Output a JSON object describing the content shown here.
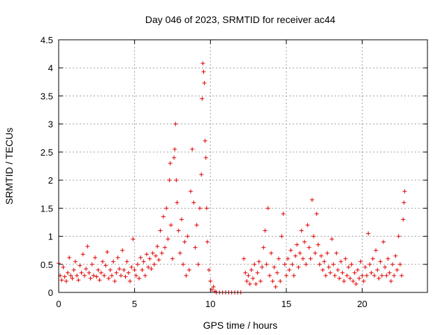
{
  "chart_data": {
    "type": "scatter",
    "title": "Day 046 of 2023, SRMTID for receiver ac44",
    "xlabel": "GPS time / hours",
    "ylabel": "SRMTID / TECUs",
    "xlim": [
      0,
      24.3
    ],
    "ylim": [
      0,
      4.5
    ],
    "xticks": [
      0,
      5,
      10,
      15,
      20
    ],
    "xtick_labels": [
      "0",
      "5",
      "10",
      "15",
      "20"
    ],
    "yticks": [
      0,
      0.5,
      1,
      1.5,
      2,
      2.5,
      3,
      3.5,
      4,
      4.5
    ],
    "ytick_labels": [
      "0",
      "0.5",
      "1",
      "1.5",
      "2",
      "2.5",
      "3",
      "3.5",
      "4",
      "4.5"
    ],
    "grid": true,
    "marker": "plus",
    "series": [
      {
        "name": "SRMTID",
        "color": "#e00000",
        "points": [
          [
            0.0,
            0.52
          ],
          [
            0.1,
            0.3
          ],
          [
            0.2,
            0.22
          ],
          [
            0.3,
            0.45
          ],
          [
            0.4,
            0.28
          ],
          [
            0.5,
            0.2
          ],
          [
            0.6,
            0.35
          ],
          [
            0.7,
            0.62
          ],
          [
            0.8,
            0.3
          ],
          [
            0.9,
            0.25
          ],
          [
            1.0,
            0.4
          ],
          [
            1.1,
            0.55
          ],
          [
            1.2,
            0.3
          ],
          [
            1.3,
            0.22
          ],
          [
            1.4,
            0.48
          ],
          [
            1.5,
            0.35
          ],
          [
            1.6,
            0.68
          ],
          [
            1.7,
            0.3
          ],
          [
            1.8,
            0.42
          ],
          [
            1.9,
            0.82
          ],
          [
            2.0,
            0.35
          ],
          [
            2.1,
            0.25
          ],
          [
            2.2,
            0.5
          ],
          [
            2.3,
            0.3
          ],
          [
            2.4,
            0.62
          ],
          [
            2.5,
            0.28
          ],
          [
            2.6,
            0.4
          ],
          [
            2.7,
            0.22
          ],
          [
            2.8,
            0.35
          ],
          [
            2.9,
            0.55
          ],
          [
            3.0,
            0.3
          ],
          [
            3.1,
            0.48
          ],
          [
            3.2,
            0.72
          ],
          [
            3.3,
            0.25
          ],
          [
            3.4,
            0.4
          ],
          [
            3.5,
            0.3
          ],
          [
            3.6,
            0.55
          ],
          [
            3.7,
            0.2
          ],
          [
            3.8,
            0.35
          ],
          [
            3.9,
            0.62
          ],
          [
            4.0,
            0.42
          ],
          [
            4.1,
            0.3
          ],
          [
            4.2,
            0.75
          ],
          [
            4.3,
            0.4
          ],
          [
            4.4,
            0.28
          ],
          [
            4.5,
            0.55
          ],
          [
            4.6,
            0.35
          ],
          [
            4.7,
            0.2
          ],
          [
            4.8,
            0.45
          ],
          [
            4.9,
            0.95
          ],
          [
            5.0,
            0.4
          ],
          [
            5.1,
            0.3
          ],
          [
            5.2,
            0.5
          ],
          [
            5.3,
            0.25
          ],
          [
            5.4,
            0.62
          ],
          [
            5.5,
            0.4
          ],
          [
            5.6,
            0.55
          ],
          [
            5.7,
            0.3
          ],
          [
            5.8,
            0.68
          ],
          [
            5.9,
            0.45
          ],
          [
            6.0,
            0.6
          ],
          [
            6.1,
            0.42
          ],
          [
            6.2,
            0.7
          ],
          [
            6.3,
            0.5
          ],
          [
            6.4,
            0.65
          ],
          [
            6.5,
            0.82
          ],
          [
            6.6,
            0.58
          ],
          [
            6.7,
            1.1
          ],
          [
            6.8,
            0.7
          ],
          [
            6.9,
            1.35
          ],
          [
            7.0,
            0.8
          ],
          [
            7.1,
            1.5
          ],
          [
            7.2,
            0.95
          ],
          [
            7.3,
            2.0
          ],
          [
            7.35,
            2.3
          ],
          [
            7.4,
            1.2
          ],
          [
            7.5,
            0.6
          ],
          [
            7.6,
            2.4
          ],
          [
            7.65,
            2.55
          ],
          [
            7.7,
            3.0
          ],
          [
            7.75,
            2.0
          ],
          [
            7.8,
            1.6
          ],
          [
            7.9,
            1.1
          ],
          [
            8.0,
            0.7
          ],
          [
            8.1,
            1.3
          ],
          [
            8.2,
            0.5
          ],
          [
            8.3,
            0.9
          ],
          [
            8.4,
            0.3
          ],
          [
            8.5,
            1.0
          ],
          [
            8.6,
            0.4
          ],
          [
            8.7,
            1.8
          ],
          [
            8.8,
            2.55
          ],
          [
            8.9,
            1.6
          ],
          [
            9.0,
            0.8
          ],
          [
            9.1,
            1.2
          ],
          [
            9.2,
            0.5
          ],
          [
            9.3,
            1.5
          ],
          [
            9.4,
            2.1
          ],
          [
            9.45,
            3.45
          ],
          [
            9.5,
            4.08
          ],
          [
            9.55,
            3.93
          ],
          [
            9.6,
            3.73
          ],
          [
            9.65,
            2.7
          ],
          [
            9.7,
            2.4
          ],
          [
            9.75,
            1.5
          ],
          [
            9.8,
            0.9
          ],
          [
            9.9,
            0.4
          ],
          [
            10.0,
            0.2
          ],
          [
            10.1,
            0.05
          ],
          [
            10.2,
            0.1
          ],
          [
            10.3,
            0.02
          ],
          [
            10.4,
            0.0
          ],
          [
            10.6,
            0.0
          ],
          [
            10.8,
            0.0
          ],
          [
            11.0,
            0.0
          ],
          [
            11.2,
            0.0
          ],
          [
            11.4,
            0.0
          ],
          [
            11.6,
            0.0
          ],
          [
            11.8,
            0.0
          ],
          [
            12.0,
            0.0
          ],
          [
            12.2,
            0.6
          ],
          [
            12.3,
            0.35
          ],
          [
            12.4,
            0.2
          ],
          [
            12.5,
            0.3
          ],
          [
            12.6,
            0.15
          ],
          [
            12.7,
            0.4
          ],
          [
            12.8,
            0.25
          ],
          [
            12.9,
            0.5
          ],
          [
            13.0,
            0.15
          ],
          [
            13.1,
            0.35
          ],
          [
            13.2,
            0.55
          ],
          [
            13.3,
            0.2
          ],
          [
            13.4,
            0.45
          ],
          [
            13.5,
            0.8
          ],
          [
            13.6,
            1.1
          ],
          [
            13.7,
            0.5
          ],
          [
            13.8,
            1.5
          ],
          [
            13.9,
            0.3
          ],
          [
            14.0,
            0.7
          ],
          [
            14.1,
            0.2
          ],
          [
            14.2,
            0.45
          ],
          [
            14.3,
            0.1
          ],
          [
            14.4,
            0.35
          ],
          [
            14.5,
            0.6
          ],
          [
            14.6,
            0.2
          ],
          [
            14.7,
            1.0
          ],
          [
            14.8,
            1.4
          ],
          [
            14.9,
            0.5
          ],
          [
            15.0,
            0.3
          ],
          [
            15.1,
            0.6
          ],
          [
            15.2,
            0.4
          ],
          [
            15.3,
            0.75
          ],
          [
            15.4,
            0.5
          ],
          [
            15.5,
            0.3
          ],
          [
            15.6,
            0.65
          ],
          [
            15.7,
            0.85
          ],
          [
            15.8,
            0.45
          ],
          [
            15.9,
            0.7
          ],
          [
            16.0,
            1.1
          ],
          [
            16.1,
            0.6
          ],
          [
            16.2,
            0.9
          ],
          [
            16.3,
            0.5
          ],
          [
            16.4,
            1.2
          ],
          [
            16.5,
            0.8
          ],
          [
            16.6,
            0.6
          ],
          [
            16.7,
            1.65
          ],
          [
            16.8,
            1.0
          ],
          [
            16.9,
            0.7
          ],
          [
            17.0,
            1.4
          ],
          [
            17.1,
            0.85
          ],
          [
            17.2,
            0.5
          ],
          [
            17.3,
            0.65
          ],
          [
            17.4,
            0.4
          ],
          [
            17.5,
            0.55
          ],
          [
            17.6,
            0.3
          ],
          [
            17.7,
            0.7
          ],
          [
            17.8,
            0.45
          ],
          [
            17.9,
            0.35
          ],
          [
            18.0,
            0.95
          ],
          [
            18.1,
            0.5
          ],
          [
            18.2,
            0.3
          ],
          [
            18.3,
            0.7
          ],
          [
            18.4,
            0.4
          ],
          [
            18.5,
            0.25
          ],
          [
            18.6,
            0.55
          ],
          [
            18.7,
            0.35
          ],
          [
            18.8,
            0.2
          ],
          [
            18.9,
            0.6
          ],
          [
            19.0,
            0.3
          ],
          [
            19.1,
            0.45
          ],
          [
            19.2,
            0.25
          ],
          [
            19.3,
            0.5
          ],
          [
            19.4,
            0.2
          ],
          [
            19.5,
            0.35
          ],
          [
            19.6,
            0.15
          ],
          [
            19.7,
            0.4
          ],
          [
            19.8,
            0.25
          ],
          [
            19.9,
            0.55
          ],
          [
            20.0,
            0.3
          ],
          [
            20.1,
            0.2
          ],
          [
            20.2,
            0.45
          ],
          [
            20.3,
            0.3
          ],
          [
            20.4,
            1.05
          ],
          [
            20.5,
            0.5
          ],
          [
            20.6,
            0.35
          ],
          [
            20.7,
            0.6
          ],
          [
            20.8,
            0.3
          ],
          [
            20.9,
            0.75
          ],
          [
            21.0,
            0.4
          ],
          [
            21.1,
            0.25
          ],
          [
            21.2,
            0.55
          ],
          [
            21.3,
            0.3
          ],
          [
            21.4,
            0.9
          ],
          [
            21.5,
            0.45
          ],
          [
            21.6,
            0.3
          ],
          [
            21.7,
            0.6
          ],
          [
            21.8,
            0.35
          ],
          [
            21.9,
            0.2
          ],
          [
            22.0,
            0.5
          ],
          [
            22.1,
            0.3
          ],
          [
            22.2,
            0.65
          ],
          [
            22.3,
            0.4
          ],
          [
            22.4,
            1.0
          ],
          [
            22.5,
            0.5
          ],
          [
            22.6,
            0.3
          ],
          [
            22.7,
            1.3
          ],
          [
            22.75,
            1.6
          ],
          [
            22.8,
            1.8
          ]
        ]
      }
    ]
  }
}
